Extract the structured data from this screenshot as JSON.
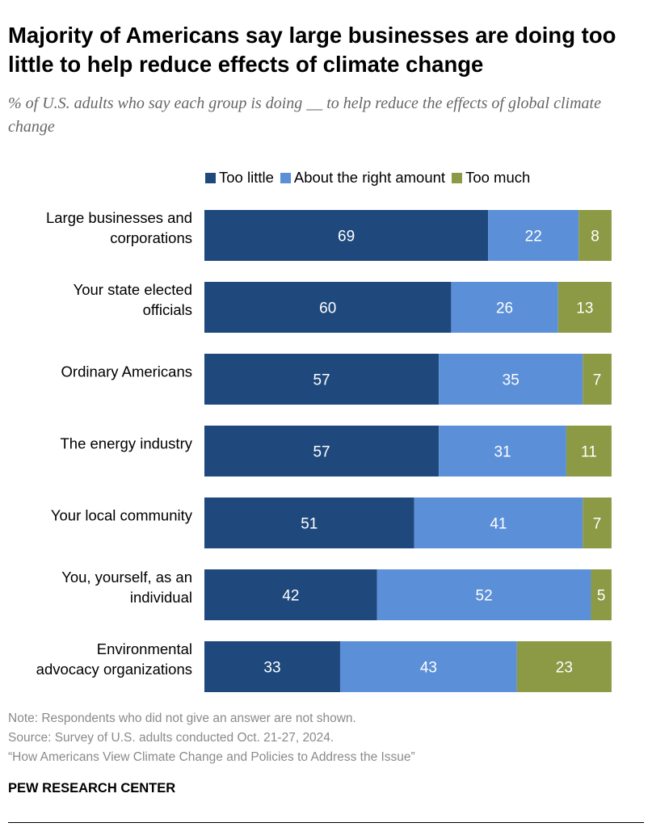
{
  "title": "Majority of Americans say large businesses are doing too little to help reduce effects of climate change",
  "subtitle": "% of U.S. adults who say each group is doing __ to help reduce the effects of global climate change",
  "colors": {
    "too_little": "#1f497d",
    "about_right": "#5b8fd8",
    "too_much": "#8c9a45"
  },
  "chart_data": {
    "type": "bar",
    "orientation": "horizontal",
    "stacked": true,
    "title": "Majority of Americans say large businesses are doing too little to help reduce effects of climate change",
    "legend_position": "top",
    "xlim": [
      0,
      100
    ],
    "categories": [
      [
        "Large businesses and",
        "corporations"
      ],
      [
        "Your state elected",
        "officials"
      ],
      [
        "Ordinary Americans"
      ],
      [
        "The energy industry"
      ],
      [
        "Your local community"
      ],
      [
        "You, yourself, as an",
        "individual"
      ],
      [
        "Environmental",
        "advocacy organizations"
      ]
    ],
    "series": [
      {
        "name": "Too little",
        "values": [
          69,
          60,
          57,
          57,
          51,
          42,
          33
        ]
      },
      {
        "name": "About the right amount",
        "values": [
          22,
          26,
          35,
          31,
          41,
          52,
          43
        ]
      },
      {
        "name": "Too much",
        "values": [
          8,
          13,
          7,
          11,
          7,
          5,
          23
        ]
      }
    ]
  },
  "notes": {
    "note": "Note: Respondents who did not give an answer are not shown.",
    "source": "Source: Survey of U.S. adults conducted Oct. 21-27, 2024.",
    "report": "“How Americans View Climate Change and Policies to Address the Issue”"
  },
  "brand": "PEW RESEARCH CENTER"
}
